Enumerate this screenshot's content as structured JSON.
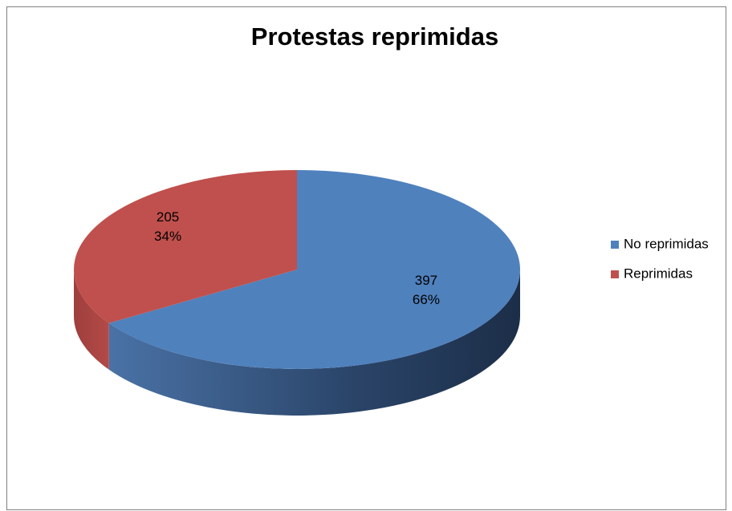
{
  "chart_data": {
    "type": "pie",
    "title": "Protestas reprimidas",
    "categories": [
      "No reprimidas",
      "Reprimidas"
    ],
    "values": [
      397,
      205
    ],
    "percent_labels": [
      "66%",
      "34%"
    ],
    "colors": [
      "#4f81bd",
      "#c0504d"
    ],
    "legend": "right"
  }
}
